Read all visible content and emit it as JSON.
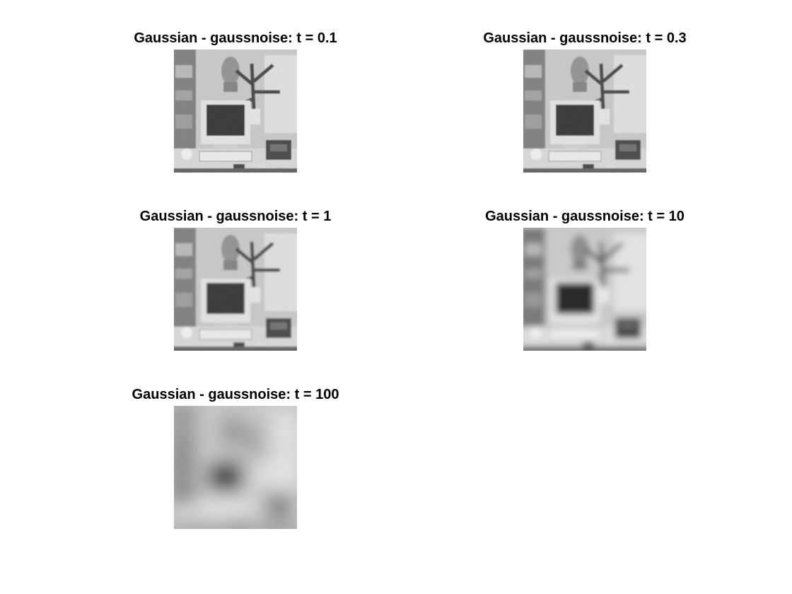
{
  "panels": [
    {
      "title": "Gaussian - gaussnoise: t = 0.1",
      "t": 0.1
    },
    {
      "title": "Gaussian - gaussnoise: t = 0.3",
      "t": 0.3
    },
    {
      "title": "Gaussian - gaussnoise: t = 1",
      "t": 1
    },
    {
      "title": "Gaussian - gaussnoise: t = 10",
      "t": 10
    },
    {
      "title": "Gaussian - gaussnoise: t = 100",
      "t": 100
    }
  ]
}
